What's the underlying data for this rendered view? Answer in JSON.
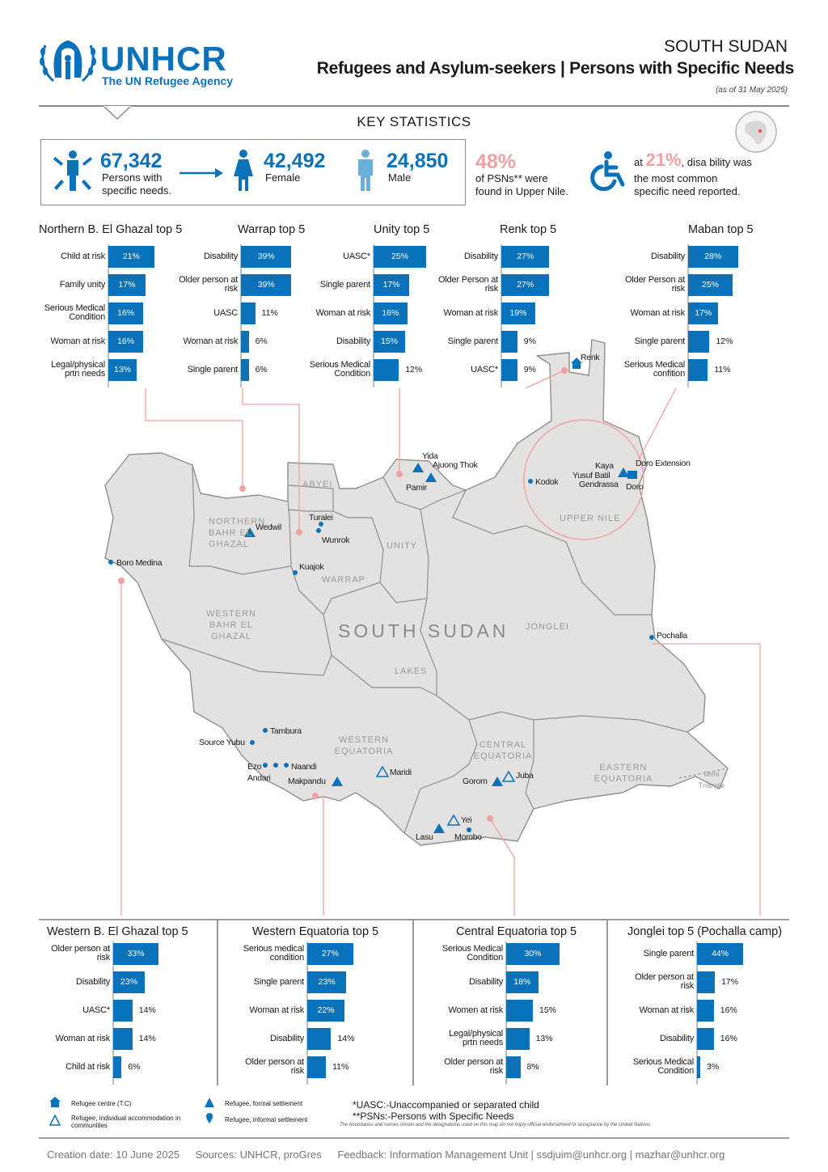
{
  "header": {
    "logo_text": "UNHCR",
    "logo_sub": "The UN Refugee Agency",
    "country": "SOUTH SUDAN",
    "title": "Refugees and Asylum-seekers | Persons with Specific Needs",
    "as_of": "(as of 31 May 2025)"
  },
  "key_stats": {
    "heading": "KEY STATISTICS",
    "psn_total": "67,342",
    "psn_text_1": "Persons with",
    "psn_text_2": "specific needs.",
    "female": "42,492",
    "female_label": "Female",
    "male": "24,850",
    "male_label": "Male",
    "upper_nile_pct": "48%",
    "upper_nile_text_1": "of PSNs** were",
    "upper_nile_text_2": "found in Upper Nile.",
    "disability_pre": "at",
    "disability_pct": "21%",
    "disability_text_1": ", disa bility was",
    "disability_text_2": "the most common",
    "disability_text_3": "specific need reported."
  },
  "colors": {
    "accent": "#0a72ba",
    "highlight": "#f1a1a1",
    "map_fill": "#e4e2e1",
    "map_stroke": "#8f8f8f"
  },
  "chart_data": [
    {
      "type": "bar",
      "title": "Northern B. El Ghazal top 5",
      "categories": [
        "Child at risk",
        "Family unity",
        "Serious Medical Condition",
        "Woman at risk",
        "Legal/physical prtn needs"
      ],
      "values": [
        21,
        17,
        16,
        16,
        13
      ],
      "labels": [
        "21%",
        "17%",
        "16%",
        "16%",
        "13%"
      ]
    },
    {
      "type": "bar",
      "title": "Warrap top 5",
      "categories": [
        "Disability",
        "Older person at risk",
        "UASC",
        "Woman at risk",
        "Single parent"
      ],
      "values": [
        39,
        39,
        11,
        6,
        6
      ],
      "labels": [
        "39%",
        "39%",
        "11%",
        "6%",
        "6%"
      ]
    },
    {
      "type": "bar",
      "title": "Unity top 5",
      "categories": [
        "UASC*",
        "Single parent",
        "Woman at risk",
        "Disability",
        "Serious Medical Condition"
      ],
      "values": [
        25,
        17,
        16,
        15,
        12
      ],
      "labels": [
        "25%",
        "17%",
        "16%",
        "15%",
        "12%"
      ]
    },
    {
      "type": "bar",
      "title": "Renk top 5",
      "categories": [
        "Disability",
        "Older Person at risk",
        "Woman at risk",
        "Single parent",
        "UASC*"
      ],
      "values": [
        27,
        27,
        19,
        9,
        9
      ],
      "labels": [
        "27%",
        "27%",
        "19%",
        "9%",
        "9%"
      ]
    },
    {
      "type": "bar",
      "title": "Maban top 5",
      "categories": [
        "Disability",
        "Older Person at risk",
        "Woman at risk",
        "Single parent",
        "Serious Medical confition"
      ],
      "values": [
        28,
        25,
        17,
        12,
        11
      ],
      "labels": [
        "28%",
        "25%",
        "17%",
        "12%",
        "11%"
      ]
    },
    {
      "type": "bar",
      "title": "Western B. El Ghazal top 5",
      "categories": [
        "Older person at risk",
        "Disability",
        "UASC*",
        "Woman at risk",
        "Child at risk"
      ],
      "values": [
        33,
        23,
        14,
        14,
        6
      ],
      "labels": [
        "33%",
        "23%",
        "14%",
        "14%",
        "6%"
      ]
    },
    {
      "type": "bar",
      "title": "Western Equatoria top 5",
      "categories": [
        "Serious medical condition",
        "Single parent",
        "Woman at risk",
        "Disability",
        "Older person at risk"
      ],
      "values": [
        27,
        23,
        22,
        14,
        11
      ],
      "labels": [
        "27%",
        "23%",
        "22%",
        "14%",
        "11%"
      ]
    },
    {
      "type": "bar",
      "title": "Central Equatoria top 5",
      "categories": [
        "Serious Medical Condition",
        "Disability",
        "Women at risk",
        "Legal/physical prtn needs",
        "Older person at risk"
      ],
      "values": [
        30,
        18,
        15,
        13,
        8
      ],
      "labels": [
        "30%",
        "18%",
        "15%",
        "13%",
        "8%"
      ]
    },
    {
      "type": "bar",
      "title": "Jonglei top 5 (Pochalla camp)",
      "categories": [
        "Single parent",
        "Older person at risk",
        "Woman at risk",
        "Disability",
        "Serious Medical Condition"
      ],
      "values": [
        44,
        17,
        16,
        16,
        3
      ],
      "labels": [
        "44%",
        "17%",
        "16%",
        "16%",
        "3%"
      ]
    }
  ],
  "map": {
    "country_label": "SOUTH SUDAN",
    "regions": {
      "abyei": "ABYEI",
      "nbeg": "NORTHERN BAHR EL GHAZAL",
      "unity": "UNITY",
      "warrap": "WARRAP",
      "upper_nile": "UPPER NILE",
      "wbeg": "WESTERN BAHR EL GHAZAL",
      "jonglei": "JONGLEI",
      "lakes": "LAKES",
      "we": "WESTERN EQUATORIA",
      "ce": "CENTRAL EQUATORIA",
      "ee": "EASTERN EQUATORIA",
      "ilemi": "Ilemi Triangle"
    },
    "places": {
      "renk": "Renk",
      "yida": "Yida",
      "ajuong": "Ajuong Thok",
      "pamir": "Pamir",
      "kodok": "Kodok",
      "kaya": "Kaya",
      "yusuf": "Yusuf Batil",
      "gendrassa": "Gendrassa",
      "doro_ext": "Doro Extension",
      "doro": "Doro",
      "turalei": "Turalei",
      "wedwil": "Wedwil",
      "wunrok": "Wunrok",
      "kuajok": "Kuajok",
      "boro": "Boro Medina",
      "pochalla": "Pochalla",
      "tambura": "Tambura",
      "yubu": "Source Yubu",
      "ezo": "Ezo",
      "andari": "Andari",
      "naandi": "Naandi",
      "makpandu": "Makpandu",
      "maridi": "Maridi",
      "gorom": "Gorom",
      "juba": "Juba",
      "yei": "Yei",
      "lasu": "Lasu",
      "morobo": "Morobo"
    }
  },
  "legend": {
    "centre": "Refugee centre (T.C)",
    "individual": "Refugee, individual accommodation in communities",
    "formal": "Refugee, formal settlement",
    "informal": "Refugee, informal settlement"
  },
  "notes": {
    "uasc": "*UASC:-Unaccompanied or separated child",
    "psn": "**PSNs:-Persons with Specific Needs",
    "disclaimer": "The boundaries and names shown and the designations used on this map do not imply official endorsement or acceptance by the United Nations."
  },
  "footer": {
    "creation": "Creation date: 10 June 2025",
    "sources": "Sources: UNHCR, proGres",
    "feedback": "Feedback: Information Management Unit | ssdjuim@unhcr.org | mazhar@unhcr.org"
  }
}
